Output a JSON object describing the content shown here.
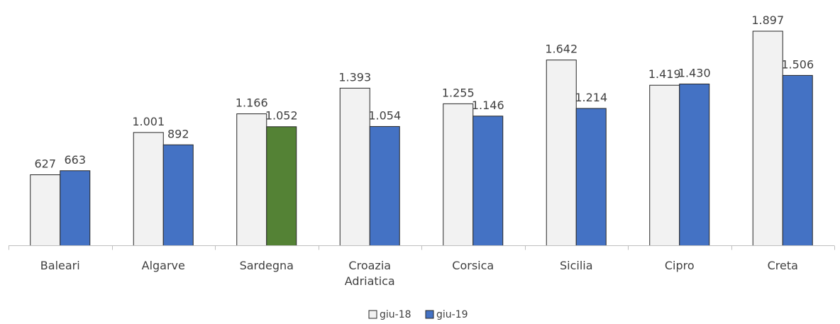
{
  "chart_data": {
    "type": "bar",
    "categories": [
      [
        "Baleari"
      ],
      [
        "Algarve"
      ],
      [
        "Sardegna"
      ],
      [
        "Croazia",
        "Adriatica"
      ],
      [
        "Corsica"
      ],
      [
        "Sicilia"
      ],
      [
        "Cipro"
      ],
      [
        "Creta"
      ]
    ],
    "series": [
      {
        "name": "giu-18",
        "color": "#f2f2f2",
        "values": [
          627,
          1001,
          1166,
          1393,
          1255,
          1642,
          1419,
          1897
        ],
        "labels": [
          "627",
          "1.001",
          "1.166",
          "1.393",
          "1.255",
          "1.642",
          "1.419",
          "1.897"
        ]
      },
      {
        "name": "giu-19",
        "color": "#4472c4",
        "highlight": {
          "index": 2,
          "color": "#548235"
        },
        "values": [
          663,
          892,
          1052,
          1054,
          1146,
          1214,
          1430,
          1506
        ],
        "labels": [
          "663",
          "892",
          "1.052",
          "1.054",
          "1.146",
          "1.214",
          "1.430",
          "1.506"
        ]
      }
    ],
    "title": "",
    "xlabel": "",
    "ylabel": "",
    "ylim": [
      0,
      2000
    ],
    "grid": false,
    "legend": "bottom-center"
  }
}
